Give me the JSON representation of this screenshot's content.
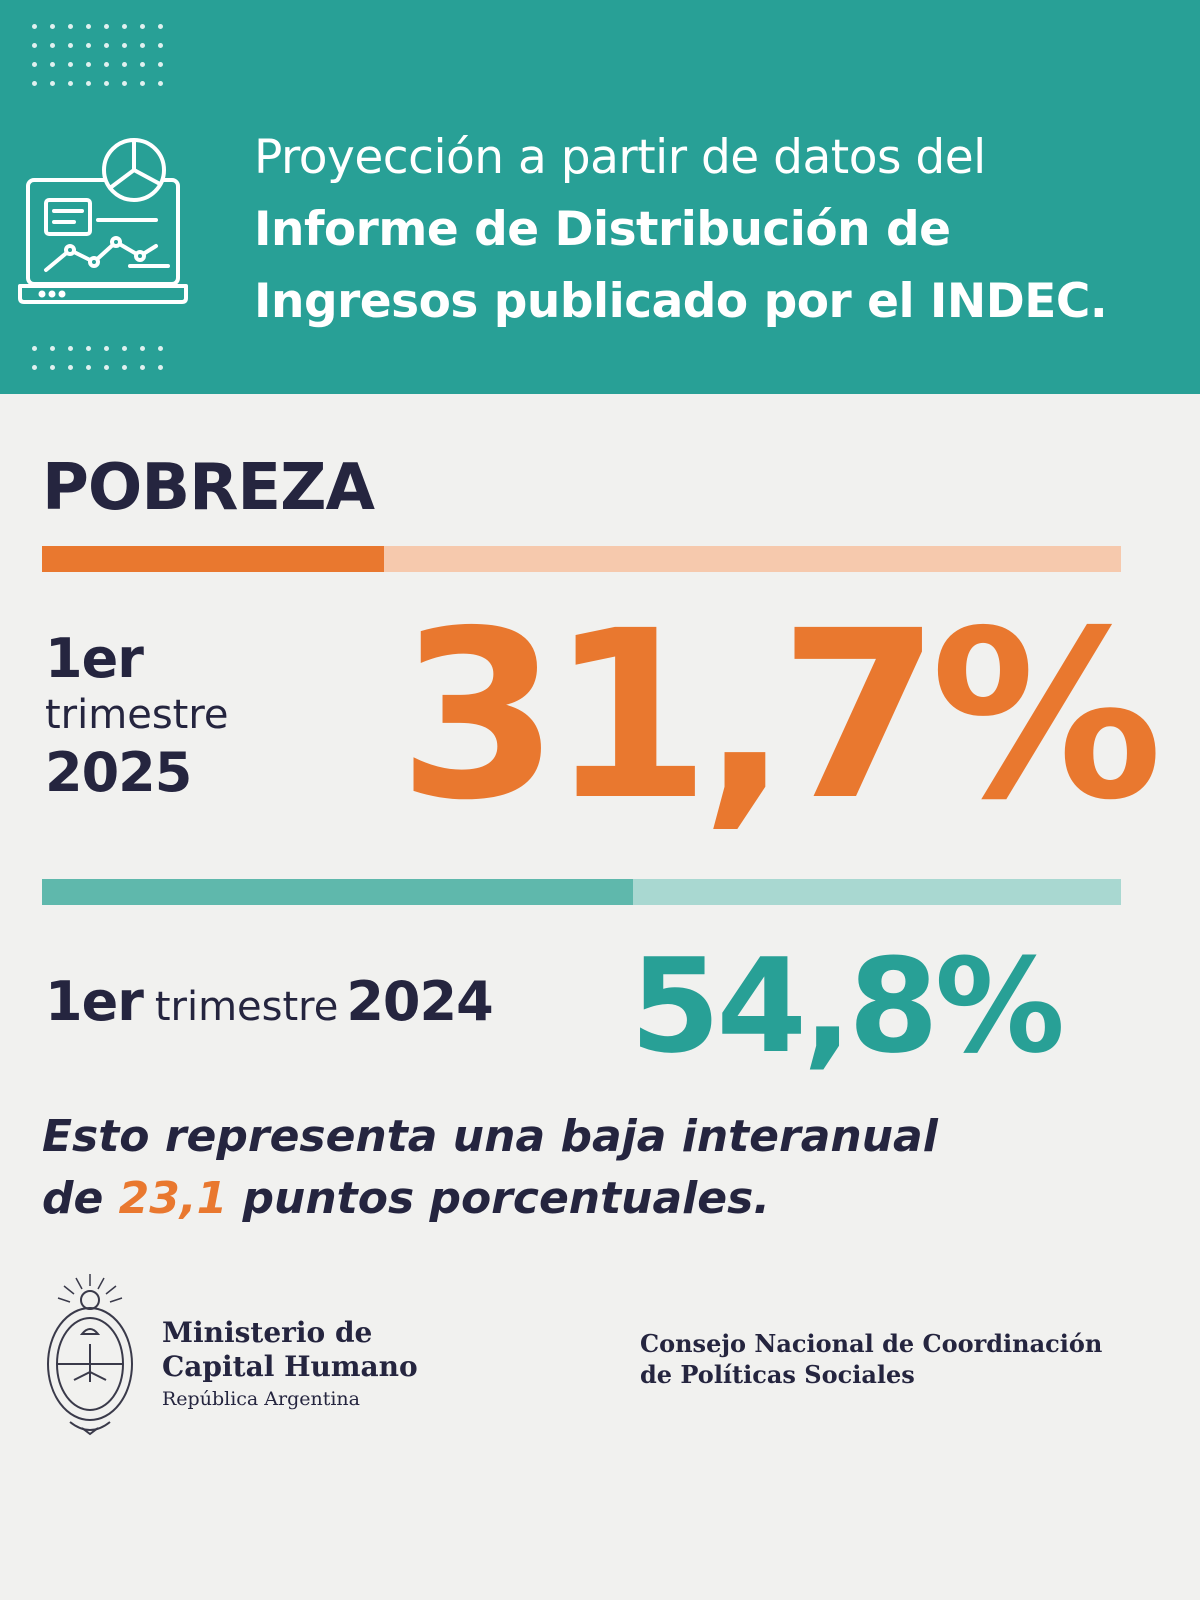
{
  "header": {
    "line1": "Proyección a partir de datos del",
    "line2": "Informe de Distribución de",
    "line3": "Ingresos publicado por el INDEC.",
    "background_color": "#28a096",
    "icon": "laptop-report-icon"
  },
  "section_title": "POBREZA",
  "chart_data": {
    "type": "bar",
    "categories": [
      "1er trimestre 2025",
      "1er trimestre 2024"
    ],
    "values": [
      31.7,
      54.8
    ],
    "unit": "%",
    "ylim": [
      0,
      100
    ],
    "colors": [
      "#e9782f",
      "#28a096"
    ]
  },
  "period_2025": {
    "ordinal": "1er",
    "word": "trimestre",
    "year": "2025",
    "value_label": "31,7%"
  },
  "period_2024": {
    "ordinal": "1er",
    "word": "trimestre",
    "year": "2024",
    "value_label": "54,8%"
  },
  "statement": {
    "part1": "Esto representa una baja interanual",
    "part2_prefix": "de ",
    "highlight": "23,1",
    "part2_suffix": " puntos porcentuales."
  },
  "ministry": {
    "line1": "Ministerio de",
    "line2": "Capital Humano",
    "line3": "República Argentina",
    "seal": "argentina-coat-of-arms-icon"
  },
  "council": {
    "line1": "Consejo Nacional de Coordinación",
    "line2": "de Políticas Sociales"
  }
}
